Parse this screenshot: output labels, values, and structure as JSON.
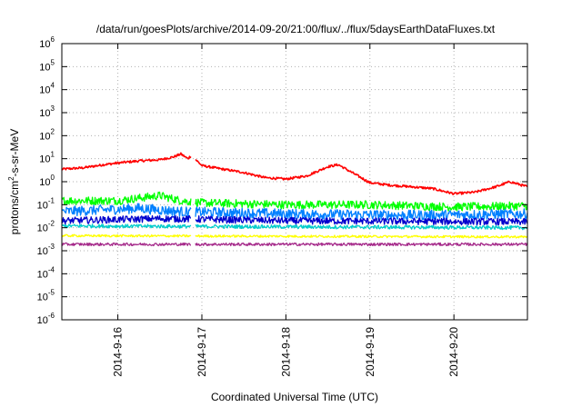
{
  "chart_data": {
    "type": "line",
    "title": "/data/run/goesPlots/archive/2014-09-20/21:00/flux/../flux/5daysEarthDataFluxes.txt",
    "xlabel": "Coordinated Universal Time (UTC)",
    "ylabel": {
      "base": "protons/cm",
      "sup": "2",
      "rest": "-s-sr-MeV"
    },
    "yscale": "log",
    "ylim_exponents": [
      -6,
      6
    ],
    "y_ticks": [
      {
        "base": "10",
        "exp": "6"
      },
      {
        "base": "10",
        "exp": "5"
      },
      {
        "base": "10",
        "exp": "4"
      },
      {
        "base": "10",
        "exp": "3"
      },
      {
        "base": "10",
        "exp": "2"
      },
      {
        "base": "10",
        "exp": "1"
      },
      {
        "base": "10",
        "exp": "0"
      },
      {
        "base": "10",
        "exp": "-1"
      },
      {
        "base": "10",
        "exp": "-2"
      },
      {
        "base": "10",
        "exp": "-3"
      },
      {
        "base": "10",
        "exp": "-4"
      },
      {
        "base": "10",
        "exp": "-5"
      },
      {
        "base": "10",
        "exp": "-6"
      }
    ],
    "xlim": [
      "2014-09-15T08:00",
      "2014-09-20T21:00"
    ],
    "x_ticks": [
      "2014-9-16",
      "2014-9-17",
      "2014-9-18",
      "2014-9-19",
      "2014-9-20"
    ],
    "grid": true,
    "series": [
      {
        "color": "#ff0000",
        "noise": 0.05,
        "points": [
          [
            "2014-09-15T08:00",
            3.5
          ],
          [
            "2014-09-15T14:00",
            4.0
          ],
          [
            "2014-09-15T20:00",
            5.5
          ],
          [
            "2014-09-16T00:00",
            6.5
          ],
          [
            "2014-09-16T06:00",
            8.0
          ],
          [
            "2014-09-16T12:00",
            9.0
          ],
          [
            "2014-09-16T16:00",
            12.0
          ],
          [
            "2014-09-16T18:00",
            16.0
          ],
          [
            "2014-09-16T20:00",
            10.0
          ],
          [
            "2014-09-16T21:00",
            14.0
          ],
          [
            "2014-09-17T00:00",
            5.0
          ],
          [
            "2014-09-17T06:00",
            3.5
          ],
          [
            "2014-09-17T12:00",
            2.5
          ],
          [
            "2014-09-17T18:00",
            1.5
          ],
          [
            "2014-09-18T00:00",
            1.3
          ],
          [
            "2014-09-18T06:00",
            1.8
          ],
          [
            "2014-09-18T12:00",
            4.5
          ],
          [
            "2014-09-18T15:00",
            5.5
          ],
          [
            "2014-09-18T18:00",
            3.0
          ],
          [
            "2014-09-19T00:00",
            0.9
          ],
          [
            "2014-09-19T06:00",
            0.7
          ],
          [
            "2014-09-19T12:00",
            0.6
          ],
          [
            "2014-09-19T18:00",
            0.5
          ],
          [
            "2014-09-20T00:00",
            0.3
          ],
          [
            "2014-09-20T06:00",
            0.35
          ],
          [
            "2014-09-20T12:00",
            0.6
          ],
          [
            "2014-09-20T16:00",
            1.0
          ],
          [
            "2014-09-20T21:00",
            0.6
          ]
        ]
      },
      {
        "color": "#00ff00",
        "noise": 0.18,
        "points": [
          [
            "2014-09-15T08:00",
            0.15
          ],
          [
            "2014-09-16T00:00",
            0.15
          ],
          [
            "2014-09-16T12:00",
            0.25
          ],
          [
            "2014-09-16T18:00",
            0.15
          ],
          [
            "2014-09-17T00:00",
            0.12
          ],
          [
            "2014-09-18T00:00",
            0.1
          ],
          [
            "2014-09-19T00:00",
            0.1
          ],
          [
            "2014-09-20T00:00",
            0.08
          ],
          [
            "2014-09-20T21:00",
            0.09
          ]
        ]
      },
      {
        "color": "#0080ff",
        "noise": 0.22,
        "points": [
          [
            "2014-09-15T08:00",
            0.05
          ],
          [
            "2014-09-16T06:00",
            0.07
          ],
          [
            "2014-09-16T18:00",
            0.05
          ],
          [
            "2014-09-18T00:00",
            0.04
          ],
          [
            "2014-09-19T12:00",
            0.035
          ],
          [
            "2014-09-20T21:00",
            0.04
          ]
        ]
      },
      {
        "color": "#0000cd",
        "noise": 0.15,
        "points": [
          [
            "2014-09-15T08:00",
            0.02
          ],
          [
            "2014-09-16T12:00",
            0.025
          ],
          [
            "2014-09-18T00:00",
            0.02
          ],
          [
            "2014-09-20T21:00",
            0.018
          ]
        ]
      },
      {
        "color": "#00cccc",
        "noise": 0.08,
        "points": [
          [
            "2014-09-15T08:00",
            0.012
          ],
          [
            "2014-09-20T21:00",
            0.01
          ]
        ]
      },
      {
        "color": "#ffff00",
        "noise": 0.05,
        "points": [
          [
            "2014-09-15T08:00",
            0.0045
          ],
          [
            "2014-09-20T21:00",
            0.004
          ]
        ]
      },
      {
        "color": "#a52a8a",
        "noise": 0.06,
        "points": [
          [
            "2014-09-15T08:00",
            0.0019
          ],
          [
            "2014-09-20T21:00",
            0.0019
          ]
        ]
      }
    ]
  }
}
